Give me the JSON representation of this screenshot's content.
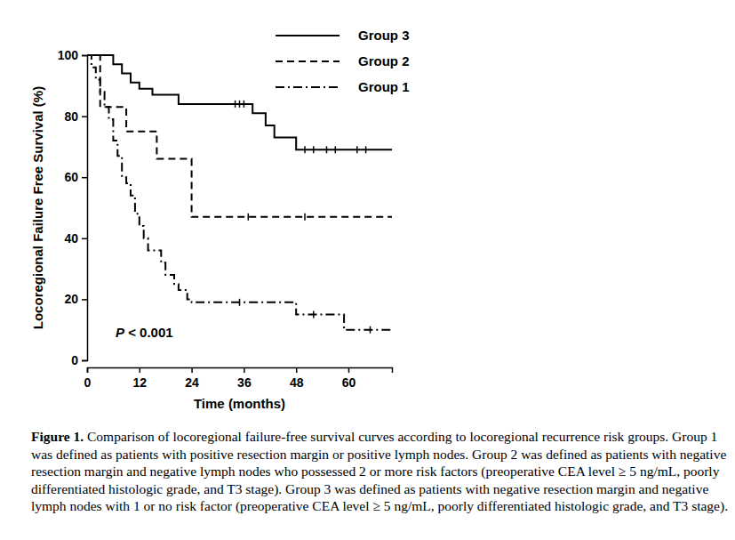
{
  "chart_data": {
    "type": "line",
    "xlabel": "Time (months)",
    "ylabel": "Locoregional Failure Free Survival (%)",
    "xlim": [
      0,
      70
    ],
    "ylim": [
      0,
      100
    ],
    "xticks": [
      0,
      12,
      24,
      36,
      48,
      60
    ],
    "yticks": [
      0,
      20,
      40,
      60,
      80,
      100
    ],
    "grid": false,
    "legend": "top-right",
    "annotations": [
      "P < 0.001"
    ],
    "series": [
      {
        "name": "Group 3",
        "color": "#000000",
        "line_style": "solid",
        "x": [
          0,
          6,
          8,
          10,
          12,
          15,
          21,
          38,
          41,
          43,
          48,
          70
        ],
        "values": [
          100,
          97,
          94,
          91,
          89,
          87,
          84,
          81,
          77,
          73,
          69,
          69
        ],
        "censored": [
          34,
          35,
          36,
          50,
          52,
          55,
          57,
          62,
          64
        ]
      },
      {
        "name": "Group 2",
        "color": "#000000",
        "line_style": "dashed",
        "x": [
          0,
          3,
          9,
          16,
          24,
          70
        ],
        "values": [
          100,
          83,
          75,
          66,
          47,
          47
        ],
        "censored": [
          37,
          50
        ]
      },
      {
        "name": "Group 1",
        "color": "#000000",
        "line_style": "dashdot",
        "x": [
          0,
          1,
          2,
          3,
          4,
          5,
          6,
          7,
          8,
          9,
          10,
          11,
          12,
          13,
          14,
          17,
          18,
          20,
          21,
          23,
          24,
          48,
          59,
          70
        ],
        "values": [
          100,
          96,
          92,
          88,
          83,
          79,
          72,
          67,
          60,
          58,
          54,
          48,
          44,
          40,
          36,
          32,
          28,
          25,
          23,
          20,
          19,
          15,
          10,
          10
        ],
        "censored": [
          35,
          52,
          65
        ]
      }
    ],
    "caption_label": "Figure 1.",
    "caption": "Comparison of locoregional failure-free survival curves according to locoregional recurrence risk groups. Group 1 was defined as patients with positive resection margin or positive lymph nodes. Group 2 was defined as patients with negative resection margin and negative lymph nodes who possessed 2 or more risk factors (preoperative CEA level ≥ 5 ng/mL, poorly differentiated histologic grade, and T3 stage). Group 3 was defined as patients with negative resection margin and negative lymph nodes with 1 or no risk factor (preoperative CEA level ≥ 5 ng/mL, poorly differentiated histologic grade, and T3 stage)."
  }
}
